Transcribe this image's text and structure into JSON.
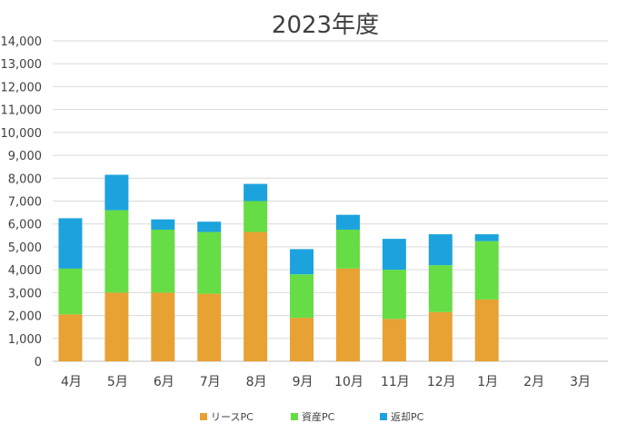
{
  "chart_data": {
    "type": "bar",
    "stacked": true,
    "title": "2023年度",
    "xlabel": "",
    "ylabel": "",
    "categories": [
      "4月",
      "5月",
      "6月",
      "7月",
      "8月",
      "9月",
      "10月",
      "11月",
      "12月",
      "1月",
      "2月",
      "3月"
    ],
    "series": [
      {
        "name": "リースPC",
        "color": "#E8A133",
        "values": [
          2050,
          3000,
          3000,
          2950,
          5650,
          1900,
          4050,
          1850,
          2150,
          2700,
          0,
          0
        ]
      },
      {
        "name": "資産PC",
        "color": "#66DD44",
        "values": [
          2000,
          3600,
          2750,
          2700,
          1350,
          1900,
          1700,
          2150,
          2050,
          2550,
          0,
          0
        ]
      },
      {
        "name": "返却PC",
        "color": "#1CA3DE",
        "values": [
          2200,
          1550,
          450,
          450,
          750,
          1100,
          650,
          1350,
          1350,
          300,
          0,
          0
        ]
      }
    ],
    "ylim": [
      0,
      14000
    ],
    "yticks": [
      "0",
      "1,000",
      "2,000",
      "3,000",
      "4,000",
      "5,000",
      "6,000",
      "7,000",
      "8,000",
      "9,000",
      "10,000",
      "11,000",
      "12,000",
      "13,000",
      "14,000"
    ],
    "grid": true,
    "legend_position": "bottom"
  }
}
